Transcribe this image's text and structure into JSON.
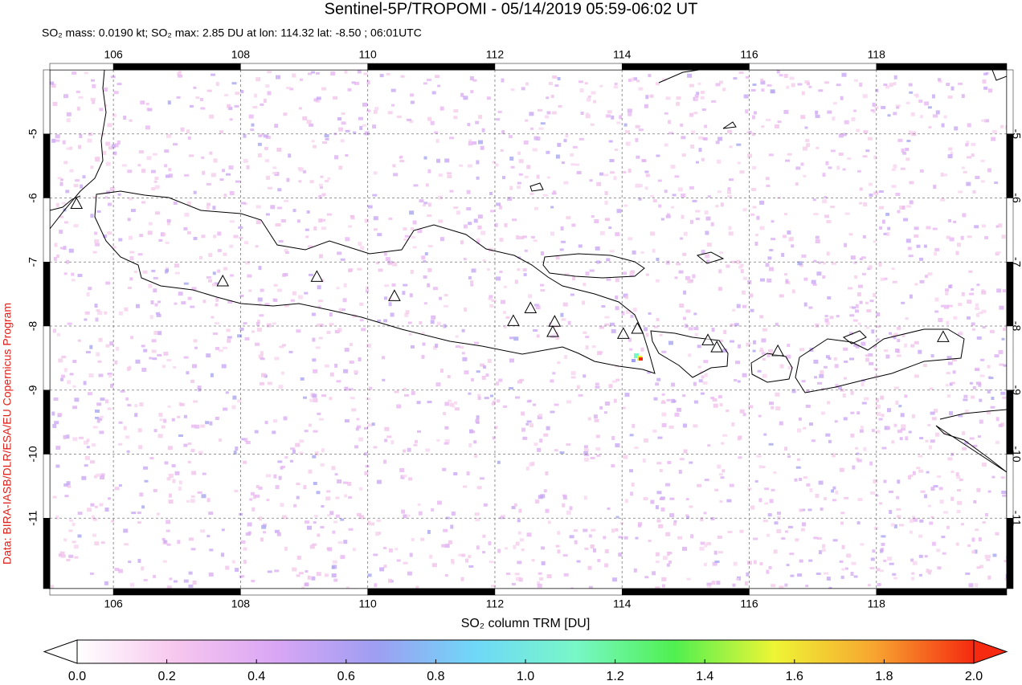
{
  "chart_data": {
    "type": "map",
    "title": "Sentinel-5P/TROPOMI - 05/14/2019 05:59-06:02 UT",
    "subtitle": "SO₂ mass: 0.0190 kt; SO₂ max: 2.85 DU at lon: 114.32 lat: -8.50 ; 06:01UTC",
    "credit": "Data: BIRA-IASB/DLR/ESA/EU Copernicus Program",
    "xlim": [
      105.0,
      120.05
    ],
    "ylim": [
      -12.1,
      -4.0
    ],
    "xticks": [
      106,
      108,
      110,
      112,
      114,
      116,
      118
    ],
    "yticks": [
      -5,
      -6,
      -7,
      -8,
      -9,
      -10,
      -11
    ],
    "grid": true,
    "volcanoes": {
      "lon": [
        105.42,
        107.72,
        109.2,
        110.42,
        112.29,
        112.56,
        112.94,
        112.91,
        114.02,
        114.24,
        115.35,
        115.49,
        116.45,
        119.05
      ],
      "lat": [
        -6.1,
        -7.31,
        -7.24,
        -7.54,
        -7.93,
        -7.73,
        -7.94,
        -8.1,
        -8.13,
        -8.05,
        -8.23,
        -8.34,
        -8.4,
        -8.18
      ]
    },
    "colorbar": {
      "label": "SO₂ column TRM [DU]",
      "lim": [
        0,
        2
      ],
      "colors": [
        "#ffffff",
        "#f7c6ee",
        "#d9a6f5",
        "#9e9ef2",
        "#6fd8f8",
        "#78f7c8",
        "#50f050",
        "#eef535",
        "#f7a530",
        "#f52a10"
      ],
      "ticks": [
        {
          "value": 0,
          "label": "0.0"
        },
        {
          "value": 0.2,
          "label": "0.2"
        },
        {
          "value": 0.4,
          "label": "0.4"
        },
        {
          "value": 0.6,
          "label": "0.6"
        },
        {
          "value": 0.8,
          "label": "0.8"
        },
        {
          "value": 1,
          "label": "1.0"
        },
        {
          "value": 1.2,
          "label": "1.2"
        },
        {
          "value": 1.4,
          "label": "1.4"
        },
        {
          "value": 1.6,
          "label": "1.6"
        },
        {
          "value": 1.8,
          "label": "1.8"
        },
        {
          "value": 2,
          "label": "2.0"
        }
      ]
    }
  }
}
